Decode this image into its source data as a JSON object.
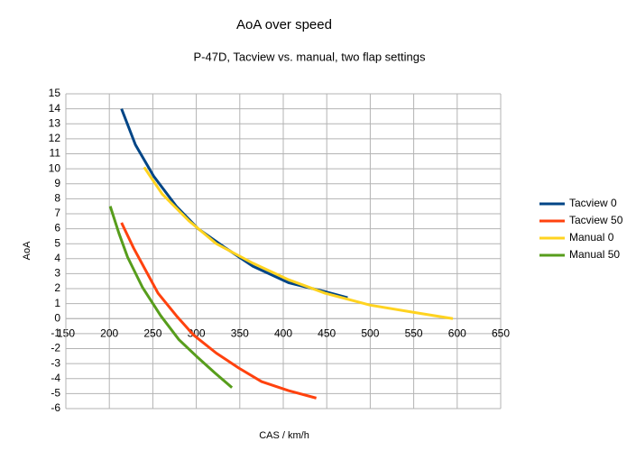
{
  "chart_data": {
    "type": "line",
    "title": "AoA over speed",
    "subtitle": "P-47D, Tacview vs. manual, two flap settings",
    "x_label": "CAS / km/h",
    "y_label": "AoA",
    "xlim": [
      150,
      650
    ],
    "xticks": [
      150,
      200,
      250,
      300,
      350,
      400,
      450,
      500,
      550,
      600,
      650
    ],
    "ylim": [
      -6,
      15
    ],
    "yticks": [
      -6,
      -5,
      -4,
      -3,
      -2,
      -1,
      0,
      1,
      2,
      3,
      4,
      5,
      6,
      7,
      8,
      9,
      10,
      11,
      12,
      13,
      14,
      15
    ],
    "grid": true,
    "legend": "right",
    "series": [
      {
        "name": "Tacview 0",
        "color": "#004586",
        "x": [
          214,
          230,
          251,
          277,
          302,
          334,
          365,
          406,
          448,
          474
        ],
        "values": [
          14,
          11.6,
          9.5,
          7.5,
          6,
          4.7,
          3.5,
          2.4,
          1.8,
          1.4
        ]
      },
      {
        "name": "Tacview 50",
        "color": "#ff420e",
        "x": [
          214,
          228,
          242,
          256,
          277,
          297,
          323,
          349,
          375,
          406,
          438
        ],
        "values": [
          6.4,
          4.7,
          3.2,
          1.7,
          0.2,
          -1.1,
          -2.3,
          -3.3,
          -4.2,
          -4.8,
          -5.3
        ]
      },
      {
        "name": "Manual 0",
        "color": "#ffd320",
        "x": [
          240,
          261,
          292,
          323,
          365,
          406,
          448,
          500,
          552,
          595
        ],
        "values": [
          10.1,
          8.3,
          6.5,
          5,
          3.7,
          2.6,
          1.7,
          0.9,
          0.4,
          0
        ]
      },
      {
        "name": "Manual 50",
        "color": "#579d1c",
        "x": [
          201,
          211,
          221,
          238,
          259,
          280,
          300,
          321,
          341
        ],
        "values": [
          7.5,
          5.7,
          4.1,
          2.1,
          0.2,
          -1.4,
          -2.5,
          -3.6,
          -4.6
        ]
      }
    ]
  }
}
